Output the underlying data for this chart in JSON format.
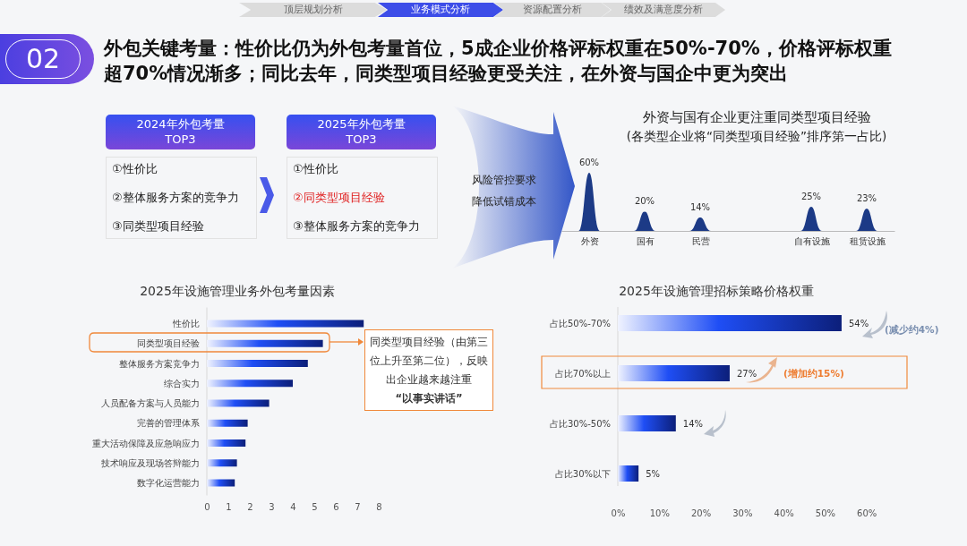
{
  "chart_data": [
    {
      "type": "other",
      "title": "外包关键考量：性价比仍为外包考量首位，5成企业价格评标权重在50%-70%，价格评标权重超70%情况渐多；同比去年，同类型项目经验更受关注，在外资与国企中更为突出",
      "annotations": [
        "02",
        "顶层规划分析",
        "业务模式分析",
        "资源配置分析",
        "绩效及满意度分析",
        "2024年外包考量",
        "TOP3",
        "①性价比",
        "②整体服务方案的竞争力",
        "③同类型项目经验",
        "2025年外包考量",
        "TOP3",
        "①性价比",
        "②同类型项目经验",
        "③整体服务方案的竞争力",
        "风险管控要求",
        "降低试错成本"
      ]
    },
    {
      "type": "bar",
      "title": "外资与国有企业更注重同类型项目经验",
      "subtitle": "(各类型企业将“同类型项目经验”排序第一占比)",
      "categories": [
        "外资",
        "国有",
        "民营",
        null,
        "自有设施",
        "租赁设施"
      ],
      "values": [
        60,
        20,
        14,
        null,
        25,
        23
      ],
      "value_labels": [
        "60%",
        "20%",
        "14%",
        null,
        "25%",
        "23%"
      ],
      "color": "#1c3a86"
    },
    {
      "type": "bar",
      "orientation": "horizontal",
      "title": "2025年设施管理业务外包考量因素",
      "categories": [
        "性价比",
        "同类型项目经验",
        "整体服务方案竞争力",
        "综合实力",
        "人员配备方案与人员能力",
        "完善的管理体系",
        "重大活动保障及应急响应力",
        "技术响应及现场答辩能力",
        "数字化运营能力"
      ],
      "values": [
        7.3,
        5.4,
        4.7,
        4.0,
        2.9,
        1.9,
        1.8,
        1.4,
        1.3
      ],
      "color": "#0c1f7a",
      "xlim": [
        0,
        8
      ],
      "xticks": [
        0,
        1,
        2,
        3,
        4,
        5,
        6,
        7,
        8
      ],
      "annotations": [
        "同类型项目经验（由第三位上升至第二位），反映出企业越来越注重",
        "“以事实讲话”"
      ]
    },
    {
      "type": "bar",
      "orientation": "horizontal",
      "title": "2025年设施管理招标策略价格权重",
      "categories": [
        "占比50%-70%",
        "占比70%以上",
        "占比30%-50%",
        "占比30%以下"
      ],
      "values": [
        54,
        27,
        14,
        5
      ],
      "value_labels": [
        "54%",
        "27%",
        "14%",
        "5%"
      ],
      "color": "#0c1f7a",
      "xlim": [
        0,
        60
      ],
      "xticks": [
        {
          "value": 0,
          "label": "0%"
        },
        {
          "value": 10,
          "label": "10%"
        },
        {
          "value": 20,
          "label": "20%"
        },
        {
          "value": 30,
          "label": "30%"
        },
        {
          "value": 40,
          "label": "40%"
        },
        {
          "value": 50,
          "label": "50%"
        },
        {
          "value": 60,
          "label": "60%"
        }
      ],
      "annotations": [
        "(减少约4%)",
        "(增加约15%)"
      ]
    }
  ]
}
